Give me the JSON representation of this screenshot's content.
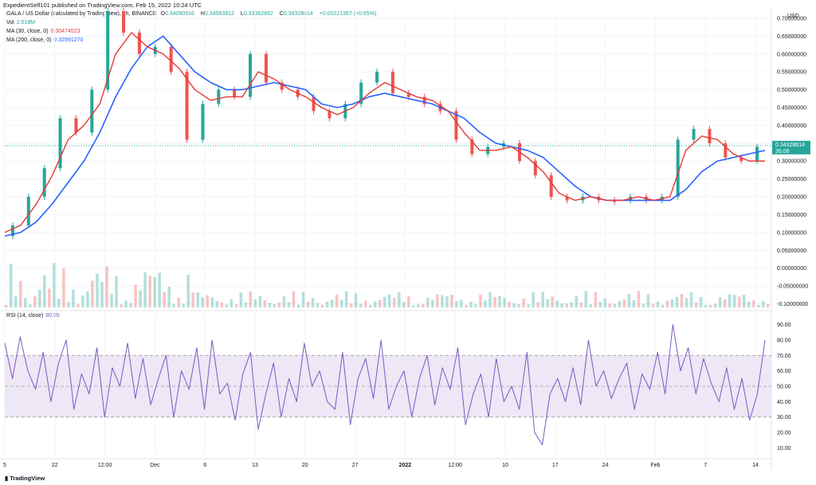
{
  "publisher": "ExpedientSelf101 published on TradingView.com, Feb 15, 2022 10:24 UTC",
  "legend": {
    "symbol": "GALA / US Dollar (calculated by TradingView), 1h, BINANCE",
    "ohlc": {
      "O": "0.34090916",
      "H": "0.34583912",
      "L": "0.33862892",
      "C": "0.34328614",
      "change": "+0.00221367 (+0.65%)"
    },
    "vol_label": "Vol",
    "vol_value": "2.018M",
    "ma30_label": "MA (30, close, 0)",
    "ma30_value": "0.30474523",
    "ma200_label": "MA (200, close, 0)",
    "ma200_value": "0.32991270",
    "rsi_label": "RSI (14, close)",
    "rsi_value": "80.55"
  },
  "currency": "USD",
  "price_tag": {
    "value": "0.34328614",
    "countdown": "35:06"
  },
  "logo": "TradingView",
  "colors": {
    "up": "#26a69a",
    "down": "#ef5350",
    "ma30": "#e53935",
    "ma200": "#2962ff",
    "rsi": "#7e57c2",
    "rsi_band": "#ede7f6"
  },
  "chart_data": [
    {
      "type": "line",
      "name": "price",
      "x_ticks": [
        "5",
        "22",
        "12:00",
        "Dec",
        "6",
        "13",
        "20",
        "27",
        "2022",
        "12:00",
        "10",
        "17",
        "24",
        "Feb",
        "7",
        "14"
      ],
      "y_ticks": [
        "0.70000000",
        "0.65000000",
        "0.60000000",
        "0.55000000",
        "0.50000000",
        "0.45000000",
        "0.40000000",
        "0.35000000",
        "0.30000000",
        "0.25000000",
        "0.20000000",
        "0.15000000",
        "0.10000000",
        "0.05000000",
        "0.00000000",
        "-0.05000000",
        "-0.10000000"
      ],
      "ylim": [
        -0.11,
        0.72
      ],
      "price": [
        0.09,
        0.12,
        0.2,
        0.28,
        0.42,
        0.38,
        0.5,
        0.72,
        0.66,
        0.6,
        0.62,
        0.55,
        0.36,
        0.46,
        0.5,
        0.48,
        0.6,
        0.52,
        0.5,
        0.48,
        0.44,
        0.42,
        0.46,
        0.52,
        0.55,
        0.49,
        0.48,
        0.46,
        0.44,
        0.36,
        0.32,
        0.34,
        0.35,
        0.3,
        0.26,
        0.2,
        0.19,
        0.2,
        0.19,
        0.19,
        0.2,
        0.19,
        0.2,
        0.36,
        0.39,
        0.35,
        0.31,
        0.3,
        0.34
      ],
      "ma30": [
        0.1,
        0.12,
        0.18,
        0.26,
        0.36,
        0.4,
        0.46,
        0.6,
        0.66,
        0.62,
        0.6,
        0.56,
        0.5,
        0.47,
        0.48,
        0.48,
        0.55,
        0.53,
        0.5,
        0.48,
        0.45,
        0.43,
        0.45,
        0.49,
        0.52,
        0.5,
        0.48,
        0.47,
        0.44,
        0.38,
        0.33,
        0.33,
        0.34,
        0.31,
        0.27,
        0.21,
        0.19,
        0.2,
        0.19,
        0.19,
        0.2,
        0.19,
        0.2,
        0.33,
        0.37,
        0.36,
        0.32,
        0.3,
        0.3
      ],
      "ma200": [
        0.09,
        0.1,
        0.13,
        0.18,
        0.24,
        0.3,
        0.38,
        0.48,
        0.56,
        0.62,
        0.65,
        0.6,
        0.55,
        0.52,
        0.5,
        0.5,
        0.51,
        0.52,
        0.51,
        0.5,
        0.46,
        0.45,
        0.46,
        0.48,
        0.49,
        0.48,
        0.47,
        0.46,
        0.44,
        0.42,
        0.38,
        0.35,
        0.34,
        0.33,
        0.31,
        0.27,
        0.23,
        0.2,
        0.19,
        0.19,
        0.19,
        0.19,
        0.19,
        0.22,
        0.27,
        0.3,
        0.31,
        0.32,
        0.33
      ]
    },
    {
      "type": "line",
      "name": "RSI",
      "y_ticks": [
        "90.00",
        "80.00",
        "70.00",
        "60.00",
        "50.00",
        "40.00",
        "30.00",
        "20.00",
        "10.00"
      ],
      "ylim": [
        5,
        95
      ],
      "band": [
        30,
        70
      ],
      "values": [
        78,
        55,
        82,
        60,
        48,
        72,
        40,
        65,
        80,
        35,
        58,
        45,
        75,
        30,
        62,
        50,
        78,
        42,
        68,
        38,
        55,
        70,
        30,
        60,
        48,
        75,
        35,
        80,
        45,
        52,
        28,
        58,
        72,
        22,
        45,
        65,
        30,
        55,
        40,
        78,
        50,
        60,
        40,
        35,
        72,
        25,
        55,
        68,
        42,
        80,
        35,
        50,
        60,
        30,
        55,
        70,
        38,
        62,
        48,
        75,
        25,
        45,
        58,
        30,
        68,
        40,
        50,
        35,
        72,
        20,
        12,
        45,
        55,
        40,
        62,
        38,
        80,
        50,
        60,
        42,
        55,
        65,
        35,
        58,
        48,
        72,
        45,
        90,
        60,
        75,
        45,
        68,
        52,
        40,
        62,
        35,
        55,
        28,
        45,
        80
      ]
    }
  ]
}
